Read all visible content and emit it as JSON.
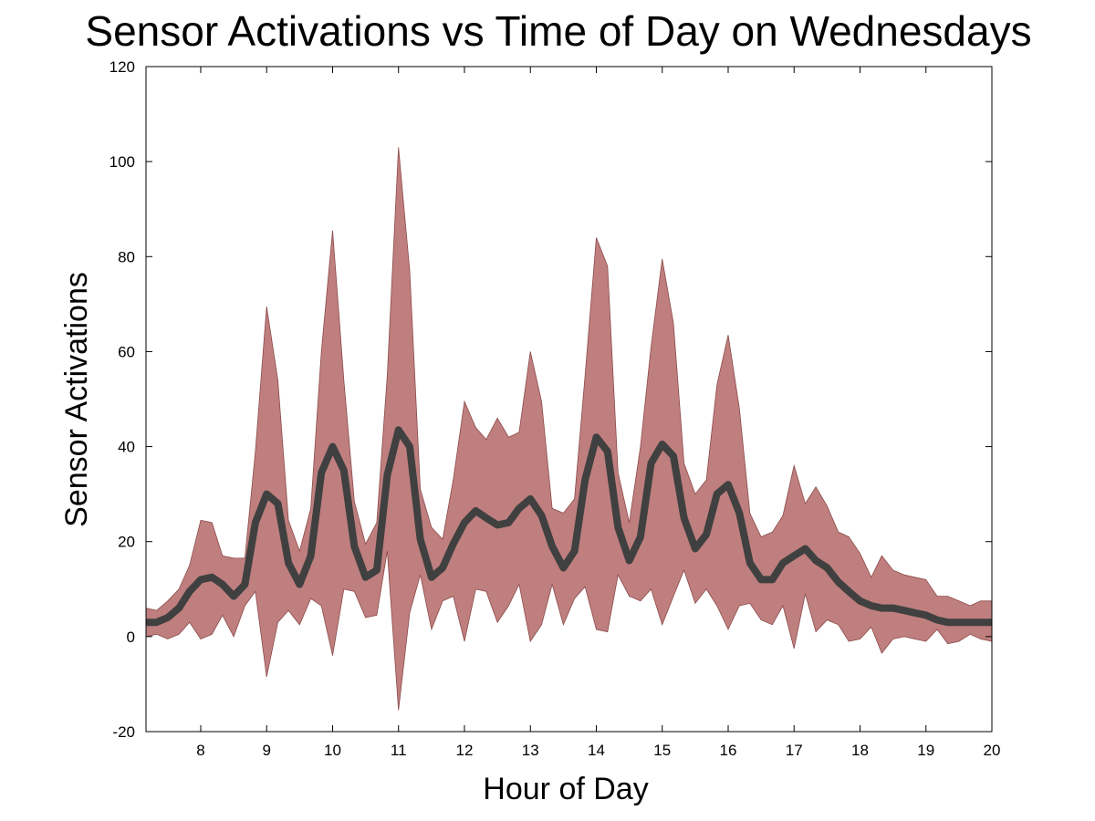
{
  "chart_data": {
    "type": "line",
    "title": "Sensor Activations vs Time of Day on Wednesdays",
    "xlabel": "Hour of Day",
    "ylabel": "Sensor Activations",
    "xlim": [
      7.17,
      20
    ],
    "ylim": [
      -20,
      120
    ],
    "xticks": [
      8,
      9,
      10,
      11,
      12,
      13,
      14,
      15,
      16,
      17,
      18,
      19,
      20
    ],
    "yticks": [
      -20,
      0,
      20,
      40,
      60,
      80,
      100,
      120
    ],
    "grid": false,
    "colors": {
      "band": "#bf7f7f",
      "band_edge": "#8c4a4a",
      "mean": "#404040"
    },
    "series": [
      {
        "kind": "band",
        "x": [
          7.17,
          7.33,
          7.5,
          7.67,
          7.83,
          8,
          8.17,
          8.33,
          8.5,
          8.67,
          8.83,
          9,
          9.17,
          9.33,
          9.5,
          9.67,
          9.83,
          10,
          10.17,
          10.33,
          10.5,
          10.67,
          10.83,
          11,
          11.17,
          11.33,
          11.5,
          11.67,
          11.83,
          12,
          12.17,
          12.33,
          12.5,
          12.67,
          12.83,
          13,
          13.17,
          13.33,
          13.5,
          13.67,
          13.83,
          14,
          14.17,
          14.33,
          14.5,
          14.67,
          14.83,
          15,
          15.17,
          15.33,
          15.5,
          15.67,
          15.83,
          16,
          16.17,
          16.33,
          16.5,
          16.67,
          16.83,
          17,
          17.17,
          17.33,
          17.5,
          17.67,
          17.83,
          18,
          18.17,
          18.33,
          18.5,
          18.67,
          18.83,
          19,
          19.17,
          19.33,
          19.5,
          19.67,
          19.83,
          20
        ],
        "upper": [
          6,
          5.5,
          7.5,
          10,
          15,
          24.5,
          24,
          17,
          16.5,
          16.5,
          39,
          69.5,
          54,
          24.5,
          18,
          27,
          60,
          85.5,
          54,
          28.5,
          19.5,
          24,
          55,
          103,
          77,
          31,
          23,
          20.5,
          33,
          49.5,
          44,
          41.5,
          46,
          42,
          43,
          60,
          49.5,
          27,
          26,
          29,
          55,
          84,
          78,
          34.5,
          24,
          40,
          61,
          79.5,
          66,
          36.5,
          30,
          33,
          53,
          63.5,
          48,
          26,
          21,
          22,
          25.5,
          36,
          28,
          31.5,
          27.5,
          22,
          21,
          17.5,
          12.5,
          17,
          14,
          13,
          12.5,
          12,
          8.5,
          8.5,
          7.5,
          6.5,
          7.5,
          7.5
        ],
        "lower": [
          0,
          0.5,
          -0.5,
          0.5,
          3,
          -0.5,
          0.5,
          4.5,
          0,
          6.5,
          9.5,
          -8.5,
          3,
          5.5,
          2.5,
          8,
          6.5,
          -4,
          10,
          9.5,
          4,
          4.5,
          18,
          -15.5,
          5,
          13,
          1.5,
          7.5,
          8.5,
          -1,
          10,
          9.5,
          3,
          6.5,
          11,
          -1,
          2.5,
          11,
          2.5,
          8,
          10.5,
          1.5,
          1,
          13,
          8.5,
          7.5,
          10,
          2.5,
          8.5,
          14,
          7,
          10,
          6.5,
          1.5,
          6.5,
          7,
          3.5,
          2.5,
          6.5,
          -2.5,
          9,
          1,
          3.5,
          2.5,
          -1,
          -0.5,
          2,
          -3.5,
          -0.5,
          0,
          -0.5,
          -1,
          1.5,
          -1.5,
          -1,
          0.5,
          -0.5,
          -1
        ]
      },
      {
        "kind": "mean",
        "x": [
          7.17,
          7.33,
          7.5,
          7.67,
          7.83,
          8,
          8.17,
          8.33,
          8.5,
          8.67,
          8.83,
          9,
          9.17,
          9.33,
          9.5,
          9.67,
          9.83,
          10,
          10.17,
          10.33,
          10.5,
          10.67,
          10.83,
          11,
          11.17,
          11.33,
          11.5,
          11.67,
          11.83,
          12,
          12.17,
          12.33,
          12.5,
          12.67,
          12.83,
          13,
          13.17,
          13.33,
          13.5,
          13.67,
          13.83,
          14,
          14.17,
          14.33,
          14.5,
          14.67,
          14.83,
          15,
          15.17,
          15.33,
          15.5,
          15.67,
          15.83,
          16,
          16.17,
          16.33,
          16.5,
          16.67,
          16.83,
          17,
          17.17,
          17.33,
          17.5,
          17.67,
          17.83,
          18,
          18.17,
          18.33,
          18.5,
          18.67,
          18.83,
          19,
          19.17,
          19.33,
          19.5,
          19.67,
          19.83,
          20
        ],
        "values": [
          3,
          3,
          4,
          6,
          9.5,
          12,
          12.5,
          11,
          8.5,
          11,
          24,
          30,
          28,
          15.5,
          11,
          17,
          34.5,
          40,
          35,
          19,
          12.5,
          14,
          34,
          43.5,
          40,
          20.5,
          12.5,
          14.5,
          19.5,
          24,
          26.5,
          25,
          23.5,
          24,
          27,
          29,
          25.5,
          19,
          14.5,
          18,
          33,
          42,
          39,
          23,
          16,
          21,
          36.5,
          40.5,
          38,
          25,
          18.5,
          21.5,
          30,
          32,
          26,
          15.5,
          12,
          12,
          15.5,
          17,
          18.5,
          16,
          14.5,
          11.5,
          9.5,
          7.5,
          6.5,
          6,
          6,
          5.5,
          5,
          4.5,
          3.5,
          3,
          3,
          3,
          3,
          3
        ]
      }
    ]
  }
}
